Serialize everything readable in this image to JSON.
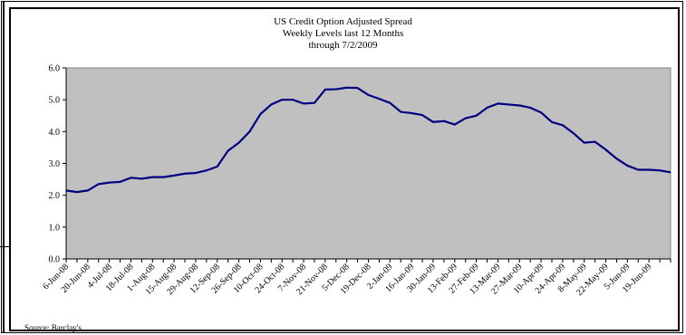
{
  "chart_data": {
    "type": "line",
    "title": "US Credit Option Adjusted Spread",
    "subtitle_lines": [
      "Weekly Levels last 12 Months",
      "through 7/2/2009"
    ],
    "source": "Source: Barclay's",
    "ylim": [
      0,
      6
    ],
    "yticks": [
      "0.0",
      "1.0",
      "2.0",
      "3.0",
      "4.0",
      "5.0",
      "6.0"
    ],
    "xtick_labels": [
      "6-Jun-08",
      "20-Jun-08",
      "4-Jul-08",
      "18-Jul-08",
      "1-Aug-08",
      "15-Aug-08",
      "29-Aug-08",
      "12-Sep-08",
      "26-Sep-08",
      "10-Oct-08",
      "24-Oct-08",
      "7-Nov-08",
      "21-Nov-08",
      "5-Dec-08",
      "19-Dec-08",
      "2-Jan-09",
      "16-Jan-09",
      "30-Jan-09",
      "13-Feb-09",
      "27-Feb-09",
      "13-Mar-09",
      "27-Mar-09",
      "10-Apr-09",
      "24-Apr-09",
      "8-May-09",
      "22-May-09",
      "5-Jun-09",
      "19-Jun-09"
    ],
    "plot_color": "#c0c0c0",
    "line_color": "#000080",
    "grid": false,
    "series": [
      {
        "values": [
          2.15,
          2.1,
          2.15,
          2.35,
          2.4,
          2.42,
          2.55,
          2.52,
          2.57,
          2.57,
          2.62,
          2.68,
          2.7,
          2.78,
          2.9,
          3.4,
          3.65,
          4.0,
          4.55,
          4.85,
          5.0,
          5.0,
          4.88,
          4.9,
          5.32,
          5.33,
          5.38,
          5.37,
          5.15,
          5.03,
          4.9,
          4.62,
          4.58,
          4.52,
          4.3,
          4.33,
          4.22,
          4.42,
          4.5,
          4.75,
          4.88,
          4.85,
          4.82,
          4.75,
          4.6,
          4.3,
          4.2,
          3.95,
          3.65,
          3.68,
          3.43,
          3.15,
          2.93,
          2.8,
          2.8,
          2.78,
          2.72
        ]
      }
    ]
  }
}
